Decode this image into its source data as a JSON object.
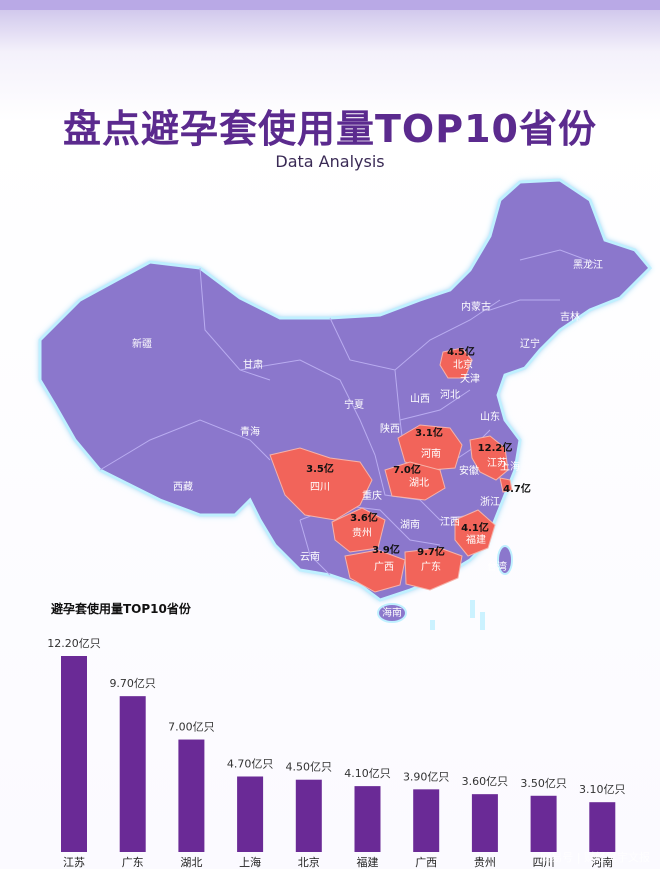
{
  "header": {
    "title": "盘点避孕套使用量TOP10省份",
    "subtitle": "Data Analysis"
  },
  "map": {
    "region_labels": [
      "新疆",
      "西藏",
      "青海",
      "甘肃",
      "内蒙古",
      "黑龙江",
      "吉林",
      "辽宁",
      "北京",
      "天津",
      "河北",
      "山西",
      "宁夏",
      "陕西",
      "山东",
      "河南",
      "江苏",
      "安徽",
      "上海",
      "湖北",
      "四川",
      "重庆",
      "浙江",
      "贵州",
      "湖南",
      "江西",
      "福建",
      "云南",
      "广西",
      "广东",
      "台湾",
      "海南"
    ],
    "value_labels": [
      {
        "province": "北京",
        "text": "4.5亿"
      },
      {
        "province": "河南",
        "text": "3.1亿"
      },
      {
        "province": "江苏",
        "text": "12.2亿"
      },
      {
        "province": "湖北",
        "text": "7.0亿"
      },
      {
        "province": "四川",
        "text": "3.5亿"
      },
      {
        "province": "上海",
        "text": "4.7亿"
      },
      {
        "province": "贵州",
        "text": "3.6亿"
      },
      {
        "province": "福建",
        "text": "4.1亿"
      },
      {
        "province": "广西",
        "text": "3.9亿"
      },
      {
        "province": "广东",
        "text": "9.7亿"
      }
    ],
    "colors": {
      "land": "#8b77cc",
      "highlight": "#f2645a",
      "border": "#b9acf0",
      "glow": "#bff0ff"
    }
  },
  "chart_data": {
    "type": "bar",
    "title": "避孕套使用量TOP10省份",
    "categories": [
      "江苏",
      "广东",
      "湖北",
      "上海",
      "北京",
      "福建",
      "广西",
      "贵州",
      "四川",
      "河南"
    ],
    "values": [
      12.2,
      9.7,
      7.0,
      4.7,
      4.5,
      4.1,
      3.9,
      3.6,
      3.5,
      3.1
    ],
    "value_labels": [
      "12.20亿只",
      "9.70亿只",
      "7.00亿只",
      "4.70亿只",
      "4.50亿只",
      "4.10亿只",
      "3.90亿只",
      "3.60亿只",
      "3.50亿只",
      "3.10亿只"
    ],
    "unit": "亿只",
    "ylim": [
      0,
      12.2
    ],
    "bar_color": "#6a2a96",
    "grid": false,
    "legend": "none"
  },
  "watermark": "网易号 | 财经冥宇文报"
}
